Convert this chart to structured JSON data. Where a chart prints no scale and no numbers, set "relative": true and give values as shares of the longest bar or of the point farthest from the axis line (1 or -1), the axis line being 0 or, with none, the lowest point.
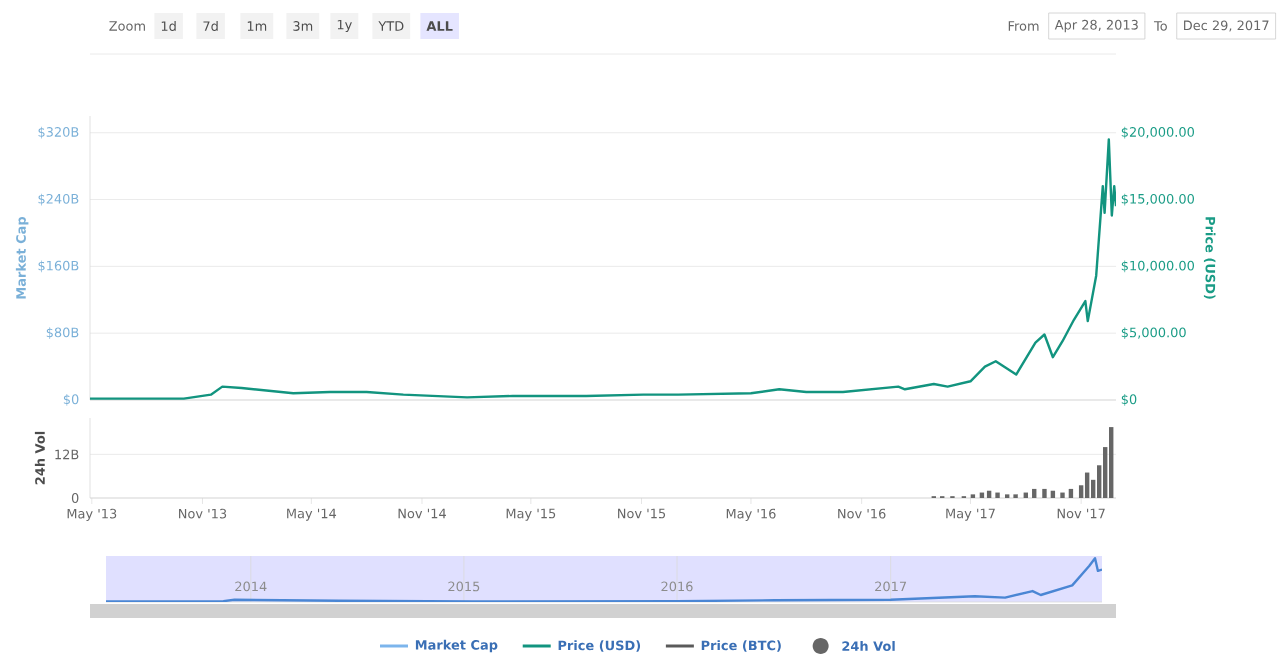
{
  "chart_data": [
    {
      "type": "line",
      "annotations": [
        "Zoom",
        "1d",
        "7d",
        "1m",
        "3m",
        "1y",
        "YTD",
        "ALL",
        "From",
        "Apr 28, 2013",
        "To",
        "Dec 29, 2017"
      ],
      "ylabel": "Market Cap",
      "y2label": "Price (USD)",
      "xlim": [
        "2013-04-28",
        "2017-12-29"
      ],
      "ylim": [
        0,
        340
      ],
      "yticks": [
        {
          "value": 0,
          "label": "$0"
        },
        {
          "value": 80,
          "label": "$80B"
        },
        {
          "value": 160,
          "label": "$160B"
        },
        {
          "value": 240,
          "label": "$240B"
        },
        {
          "value": 320,
          "label": "$320B"
        }
      ],
      "y2lim": [
        0,
        21250
      ],
      "y2ticks": [
        {
          "value": 0,
          "label": "$0"
        },
        {
          "value": 5000,
          "label": "$5,000.00"
        },
        {
          "value": 10000,
          "label": "$10,000.00"
        },
        {
          "value": 15000,
          "label": "$15,000.00"
        },
        {
          "value": 20000,
          "label": "$20,000.00"
        }
      ],
      "tick_labels": "y",
      "grid": "y",
      "legend": "bottom",
      "series": [
        {
          "name": "Market Cap",
          "color": "#7cb5ec",
          "values": [
            null
          ]
        },
        {
          "name": "Price (USD)",
          "color": "#12947f",
          "axis": "y2",
          "x": [
            "2013-04-28",
            "2013-10-01",
            "2013-11-15",
            "2013-12-04",
            "2014-01-05",
            "2014-04-01",
            "2014-06-01",
            "2014-08-01",
            "2014-10-01",
            "2015-01-15",
            "2015-04-01",
            "2015-08-01",
            "2015-11-04",
            "2016-01-01",
            "2016-05-01",
            "2016-06-17",
            "2016-08-01",
            "2016-10-01",
            "2017-01-01",
            "2017-01-12",
            "2017-03-01",
            "2017-03-24",
            "2017-05-01",
            "2017-05-25",
            "2017-06-12",
            "2017-07-16",
            "2017-08-17",
            "2017-09-01",
            "2017-09-15",
            "2017-10-01",
            "2017-10-20",
            "2017-11-08",
            "2017-11-12",
            "2017-11-26",
            "2017-12-07",
            "2017-12-10",
            "2017-12-17",
            "2017-12-22",
            "2017-12-26",
            "2017-12-29"
          ],
          "values": [
            100,
            100,
            400,
            1000,
            900,
            500,
            600,
            600,
            400,
            200,
            300,
            300,
            400,
            400,
            500,
            800,
            600,
            600,
            1000,
            800,
            1200,
            1000,
            1400,
            2500,
            2900,
            1900,
            4300,
            4900,
            3200,
            4400,
            6000,
            7400,
            5900,
            9300,
            16000,
            14000,
            19500,
            13800,
            16000,
            14500
          ]
        },
        {
          "name": "Price (BTC)",
          "color": "#5a5a5a",
          "values": [
            null
          ]
        }
      ]
    },
    {
      "type": "bar",
      "ylabel": "24h Vol",
      "xlim": [
        "2013-04-28",
        "2017-12-29"
      ],
      "xticks": [
        {
          "value": "2013-05-01",
          "label": "May '13"
        },
        {
          "value": "2013-11-01",
          "label": "Nov '13"
        },
        {
          "value": "2014-05-01",
          "label": "May '14"
        },
        {
          "value": "2014-11-01",
          "label": "Nov '14"
        },
        {
          "value": "2015-05-01",
          "label": "May '15"
        },
        {
          "value": "2015-11-01",
          "label": "Nov '15"
        },
        {
          "value": "2016-05-01",
          "label": "May '16"
        },
        {
          "value": "2016-11-01",
          "label": "Nov '16"
        },
        {
          "value": "2017-05-01",
          "label": "May '17"
        },
        {
          "value": "2017-11-01",
          "label": "Nov '17"
        }
      ],
      "ylim": [
        0,
        22
      ],
      "yticks": [
        0,
        {
          "value": 12,
          "label": "12B"
        }
      ],
      "grid": "y",
      "legend": "bottom",
      "series": [
        {
          "name": "24h Vol",
          "color": "#666666",
          "x": [
            "2017-03-01",
            "2017-03-15",
            "2017-04-01",
            "2017-04-20",
            "2017-05-05",
            "2017-05-20",
            "2017-06-01",
            "2017-06-15",
            "2017-07-01",
            "2017-07-15",
            "2017-08-01",
            "2017-08-15",
            "2017-09-01",
            "2017-09-15",
            "2017-10-01",
            "2017-10-15",
            "2017-11-01",
            "2017-11-11",
            "2017-11-21",
            "2017-12-01",
            "2017-12-11",
            "2017-12-21"
          ],
          "values": [
            0.5,
            0.5,
            0.5,
            0.5,
            1.0,
            1.5,
            2.0,
            1.5,
            1.0,
            1.0,
            1.5,
            2.5,
            2.5,
            2.0,
            1.5,
            2.5,
            3.5,
            7.0,
            5.0,
            9.0,
            14.0,
            19.5
          ]
        }
      ]
    },
    {
      "type": "line",
      "relative": true,
      "tick_labels": "x",
      "grid": "x",
      "xlim": [
        "2013-04-28",
        "2017-12-29"
      ],
      "xticks": [
        {
          "value": "2014-01-01",
          "label": "2014"
        },
        {
          "value": "2015-01-01",
          "label": "2015"
        },
        {
          "value": "2016-01-01",
          "label": "2016"
        },
        {
          "value": "2017-01-01",
          "label": "2017"
        }
      ],
      "series": [
        {
          "color": "#4a86d4",
          "x": [
            "2013-04-28",
            "2013-11-15",
            "2013-12-04",
            "2014-06-01",
            "2015-01-15",
            "2016-01-01",
            "2016-06-17",
            "2017-01-01",
            "2017-05-25",
            "2017-07-16",
            "2017-09-01",
            "2017-09-15",
            "2017-11-08",
            "2017-12-07",
            "2017-12-17",
            "2017-12-22",
            "2017-12-29"
          ],
          "values": [
            0.01,
            0.02,
            0.05,
            0.03,
            0.01,
            0.02,
            0.04,
            0.05,
            0.13,
            0.1,
            0.25,
            0.16,
            0.38,
            0.82,
            1,
            0.71,
            0.74
          ]
        }
      ]
    }
  ]
}
